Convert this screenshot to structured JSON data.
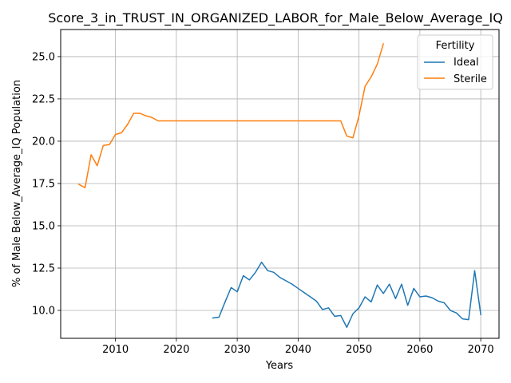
{
  "chart_data": {
    "type": "line",
    "title": "Score_3_in_TRUST_IN_ORGANIZED_LABOR_for_Male_Below_Average_IQ",
    "xlabel": "Years",
    "ylabel": "% of Male Below_Average_IQ Population",
    "xlim": [
      2001,
      2073
    ],
    "ylim": [
      8.35,
      26.6
    ],
    "xticks": [
      2010,
      2020,
      2030,
      2040,
      2050,
      2060,
      2070
    ],
    "yticks": [
      10.0,
      12.5,
      15.0,
      17.5,
      20.0,
      22.5,
      25.0
    ],
    "xtick_labels": [
      "2010",
      "2020",
      "2030",
      "2040",
      "2050",
      "2060",
      "2070"
    ],
    "ytick_labels": [
      "10.0",
      "12.5",
      "15.0",
      "17.5",
      "20.0",
      "22.5",
      "25.0"
    ],
    "grid": true,
    "legend": {
      "title": "Fertility",
      "placement": "top-right"
    },
    "series": [
      {
        "name": "Ideal",
        "color": "#1f77b4",
        "x": [
          2026,
          2027,
          2028,
          2029,
          2030,
          2031,
          2032,
          2033,
          2034,
          2035,
          2036,
          2037,
          2038,
          2039,
          2040,
          2041,
          2042,
          2043,
          2044,
          2045,
          2046,
          2047,
          2048,
          2049,
          2050,
          2051,
          2052,
          2053,
          2054,
          2055,
          2056,
          2057,
          2058,
          2059,
          2060,
          2061,
          2062,
          2063,
          2064,
          2065,
          2066,
          2067,
          2068,
          2069,
          2070
        ],
        "values": [
          9.55,
          9.6,
          10.5,
          11.35,
          11.1,
          12.05,
          11.8,
          12.25,
          12.85,
          12.35,
          12.25,
          11.95,
          11.75,
          11.55,
          11.3,
          11.05,
          10.8,
          10.55,
          10.05,
          10.15,
          9.65,
          9.7,
          9.0,
          9.8,
          10.15,
          10.8,
          10.5,
          11.5,
          11.0,
          11.55,
          10.7,
          11.55,
          10.3,
          11.3,
          10.8,
          10.85,
          10.75,
          10.55,
          10.45,
          10.0,
          9.85,
          9.5,
          9.45,
          12.35,
          9.75
        ]
      },
      {
        "name": "Sterile",
        "color": "#ff7f0e",
        "x": [
          2004,
          2005,
          2006,
          2007,
          2008,
          2009,
          2010,
          2011,
          2012,
          2013,
          2014,
          2015,
          2016,
          2017,
          2018,
          2019,
          2020,
          2021,
          2022,
          2023,
          2024,
          2025,
          2026,
          2027,
          2028,
          2029,
          2030,
          2031,
          2032,
          2033,
          2034,
          2035,
          2036,
          2037,
          2038,
          2039,
          2040,
          2041,
          2042,
          2043,
          2044,
          2045,
          2046,
          2047,
          2048,
          2049,
          2050,
          2051,
          2052,
          2053,
          2054
        ],
        "values": [
          17.45,
          17.25,
          19.2,
          18.55,
          19.75,
          19.8,
          20.4,
          20.5,
          21.0,
          21.65,
          21.65,
          21.5,
          21.4,
          21.2,
          21.2,
          21.2,
          21.2,
          21.2,
          21.2,
          21.2,
          21.2,
          21.2,
          21.2,
          21.2,
          21.2,
          21.2,
          21.2,
          21.2,
          21.2,
          21.2,
          21.2,
          21.2,
          21.2,
          21.2,
          21.2,
          21.2,
          21.2,
          21.2,
          21.2,
          21.2,
          21.2,
          21.2,
          21.2,
          21.2,
          20.3,
          20.2,
          21.5,
          23.25,
          23.8,
          24.55,
          25.75
        ]
      }
    ]
  }
}
